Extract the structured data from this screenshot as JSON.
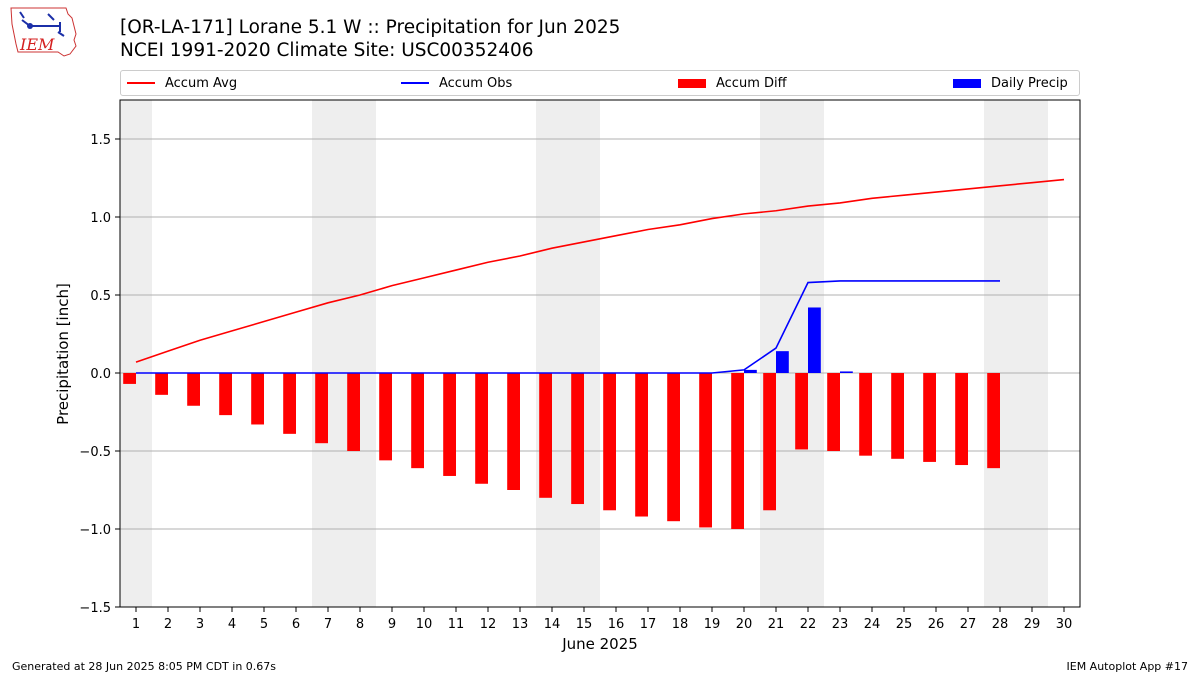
{
  "header": {
    "title_line1": "[OR-LA-171] Lorane 5.1 W :: Precipitation for Jun 2025",
    "title_line2": "NCEI 1991-2020 Climate Site: USC00352406",
    "logo_text": "IEM"
  },
  "footer": {
    "left": "Generated at 28 Jun 2025 8:05 PM CDT in 0.67s",
    "right": "IEM Autoplot App #17"
  },
  "colors": {
    "avg": "#ff0000",
    "obs": "#0000ff",
    "diff": "#ff0000",
    "daily": "#0000ff",
    "weekend_shade": "#eeeeee",
    "grid": "#b0b0b0"
  },
  "chart_data": {
    "type": "bar",
    "xlabel": "June 2025",
    "ylabel": "Precipitation [inch]",
    "ylim": [
      -1.5,
      1.75
    ],
    "xlim": [
      0.5,
      30.5
    ],
    "yticks": [
      -1.5,
      -1.0,
      -0.5,
      0.0,
      0.5,
      1.0,
      1.5
    ],
    "ytick_labels": [
      "−1.5",
      "−1.0",
      "−0.5",
      "0.0",
      "0.5",
      "1.0",
      "1.5"
    ],
    "xticks": [
      1,
      2,
      3,
      4,
      5,
      6,
      7,
      8,
      9,
      10,
      11,
      12,
      13,
      14,
      15,
      16,
      17,
      18,
      19,
      20,
      21,
      22,
      23,
      24,
      25,
      26,
      27,
      28,
      29,
      30
    ],
    "grid": "horizontal",
    "legend_position": "top",
    "weekend_days": [
      1,
      7,
      8,
      14,
      15,
      21,
      22,
      28,
      29
    ],
    "days": [
      1,
      2,
      3,
      4,
      5,
      6,
      7,
      8,
      9,
      10,
      11,
      12,
      13,
      14,
      15,
      16,
      17,
      18,
      19,
      20,
      21,
      22,
      23,
      24,
      25,
      26,
      27,
      28,
      29,
      30
    ],
    "series": [
      {
        "name": "Accum Avg",
        "kind": "line",
        "values": [
          0.07,
          0.14,
          0.21,
          0.27,
          0.33,
          0.39,
          0.45,
          0.5,
          0.56,
          0.61,
          0.66,
          0.71,
          0.75,
          0.8,
          0.84,
          0.88,
          0.92,
          0.95,
          0.99,
          1.02,
          1.04,
          1.07,
          1.09,
          1.12,
          1.14,
          1.16,
          1.18,
          1.2,
          1.22,
          1.24
        ]
      },
      {
        "name": "Accum Obs",
        "kind": "line",
        "values": [
          0.0,
          0.0,
          0.0,
          0.0,
          0.0,
          0.0,
          0.0,
          0.0,
          0.0,
          0.0,
          0.0,
          0.0,
          0.0,
          0.0,
          0.0,
          0.0,
          0.0,
          0.0,
          0.0,
          0.02,
          0.16,
          0.58,
          0.59,
          0.59,
          0.59,
          0.59,
          0.59,
          0.59,
          null,
          null
        ]
      },
      {
        "name": "Accum Diff",
        "kind": "bar",
        "offset": "left",
        "values": [
          -0.07,
          -0.14,
          -0.21,
          -0.27,
          -0.33,
          -0.39,
          -0.45,
          -0.5,
          -0.56,
          -0.61,
          -0.66,
          -0.71,
          -0.75,
          -0.8,
          -0.84,
          -0.88,
          -0.92,
          -0.95,
          -0.99,
          -1.0,
          -0.88,
          -0.49,
          -0.5,
          -0.53,
          -0.55,
          -0.57,
          -0.59,
          -0.61,
          null,
          null
        ]
      },
      {
        "name": "Daily Precip",
        "kind": "bar",
        "offset": "right",
        "values": [
          0,
          0,
          0,
          0,
          0,
          0,
          0,
          0,
          0,
          0,
          0,
          0,
          0,
          0,
          0,
          0,
          0,
          0,
          0,
          0.02,
          0.14,
          0.42,
          0.01,
          0,
          0,
          0,
          0,
          0,
          null,
          null
        ]
      }
    ]
  }
}
